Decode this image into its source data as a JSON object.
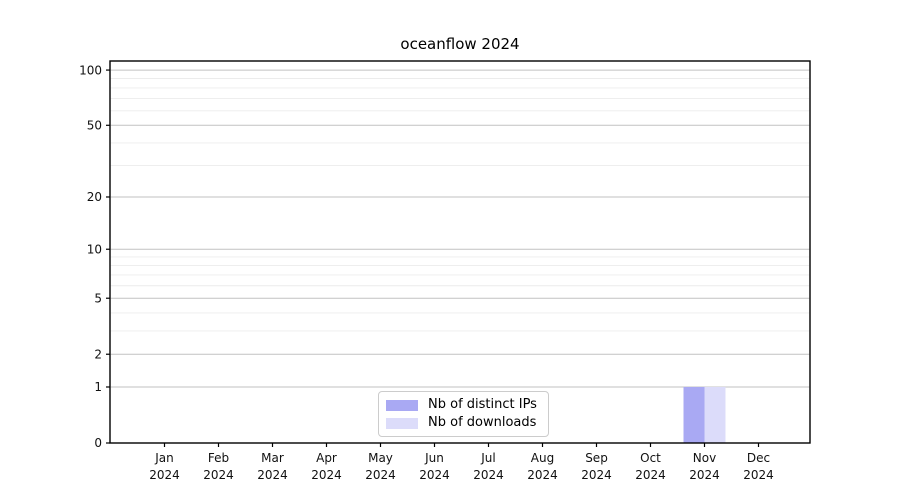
{
  "chart_data": {
    "type": "bar",
    "title": "oceanflow 2024",
    "x_ticks": [
      {
        "line1": "Jan",
        "line2": "2024"
      },
      {
        "line1": "Feb",
        "line2": "2024"
      },
      {
        "line1": "Mar",
        "line2": "2024"
      },
      {
        "line1": "Apr",
        "line2": "2024"
      },
      {
        "line1": "May",
        "line2": "2024"
      },
      {
        "line1": "Jun",
        "line2": "2024"
      },
      {
        "line1": "Jul",
        "line2": "2024"
      },
      {
        "line1": "Aug",
        "line2": "2024"
      },
      {
        "line1": "Sep",
        "line2": "2024"
      },
      {
        "line1": "Oct",
        "line2": "2024"
      },
      {
        "line1": "Nov",
        "line2": "2024"
      },
      {
        "line1": "Dec",
        "line2": "2024"
      }
    ],
    "series": [
      {
        "name": "Nb of distinct IPs",
        "color": "#a9a9f3",
        "values": [
          0,
          0,
          0,
          0,
          0,
          0,
          0,
          0,
          0,
          0,
          1,
          0
        ]
      },
      {
        "name": "Nb of downloads",
        "color": "#dcdcfa",
        "values": [
          0,
          0,
          0,
          0,
          0,
          0,
          0,
          0,
          0,
          0,
          1,
          0
        ]
      }
    ],
    "y_scale": "log1p",
    "y_tick_values": [
      0,
      1,
      2,
      5,
      10,
      20,
      50,
      100
    ],
    "y_minor_gridlines": [
      3,
      4,
      6,
      7,
      8,
      9,
      30,
      40,
      60,
      70,
      80,
      90
    ],
    "ylim": [
      0,
      112
    ],
    "grid": true,
    "legend_position": "lower center"
  }
}
